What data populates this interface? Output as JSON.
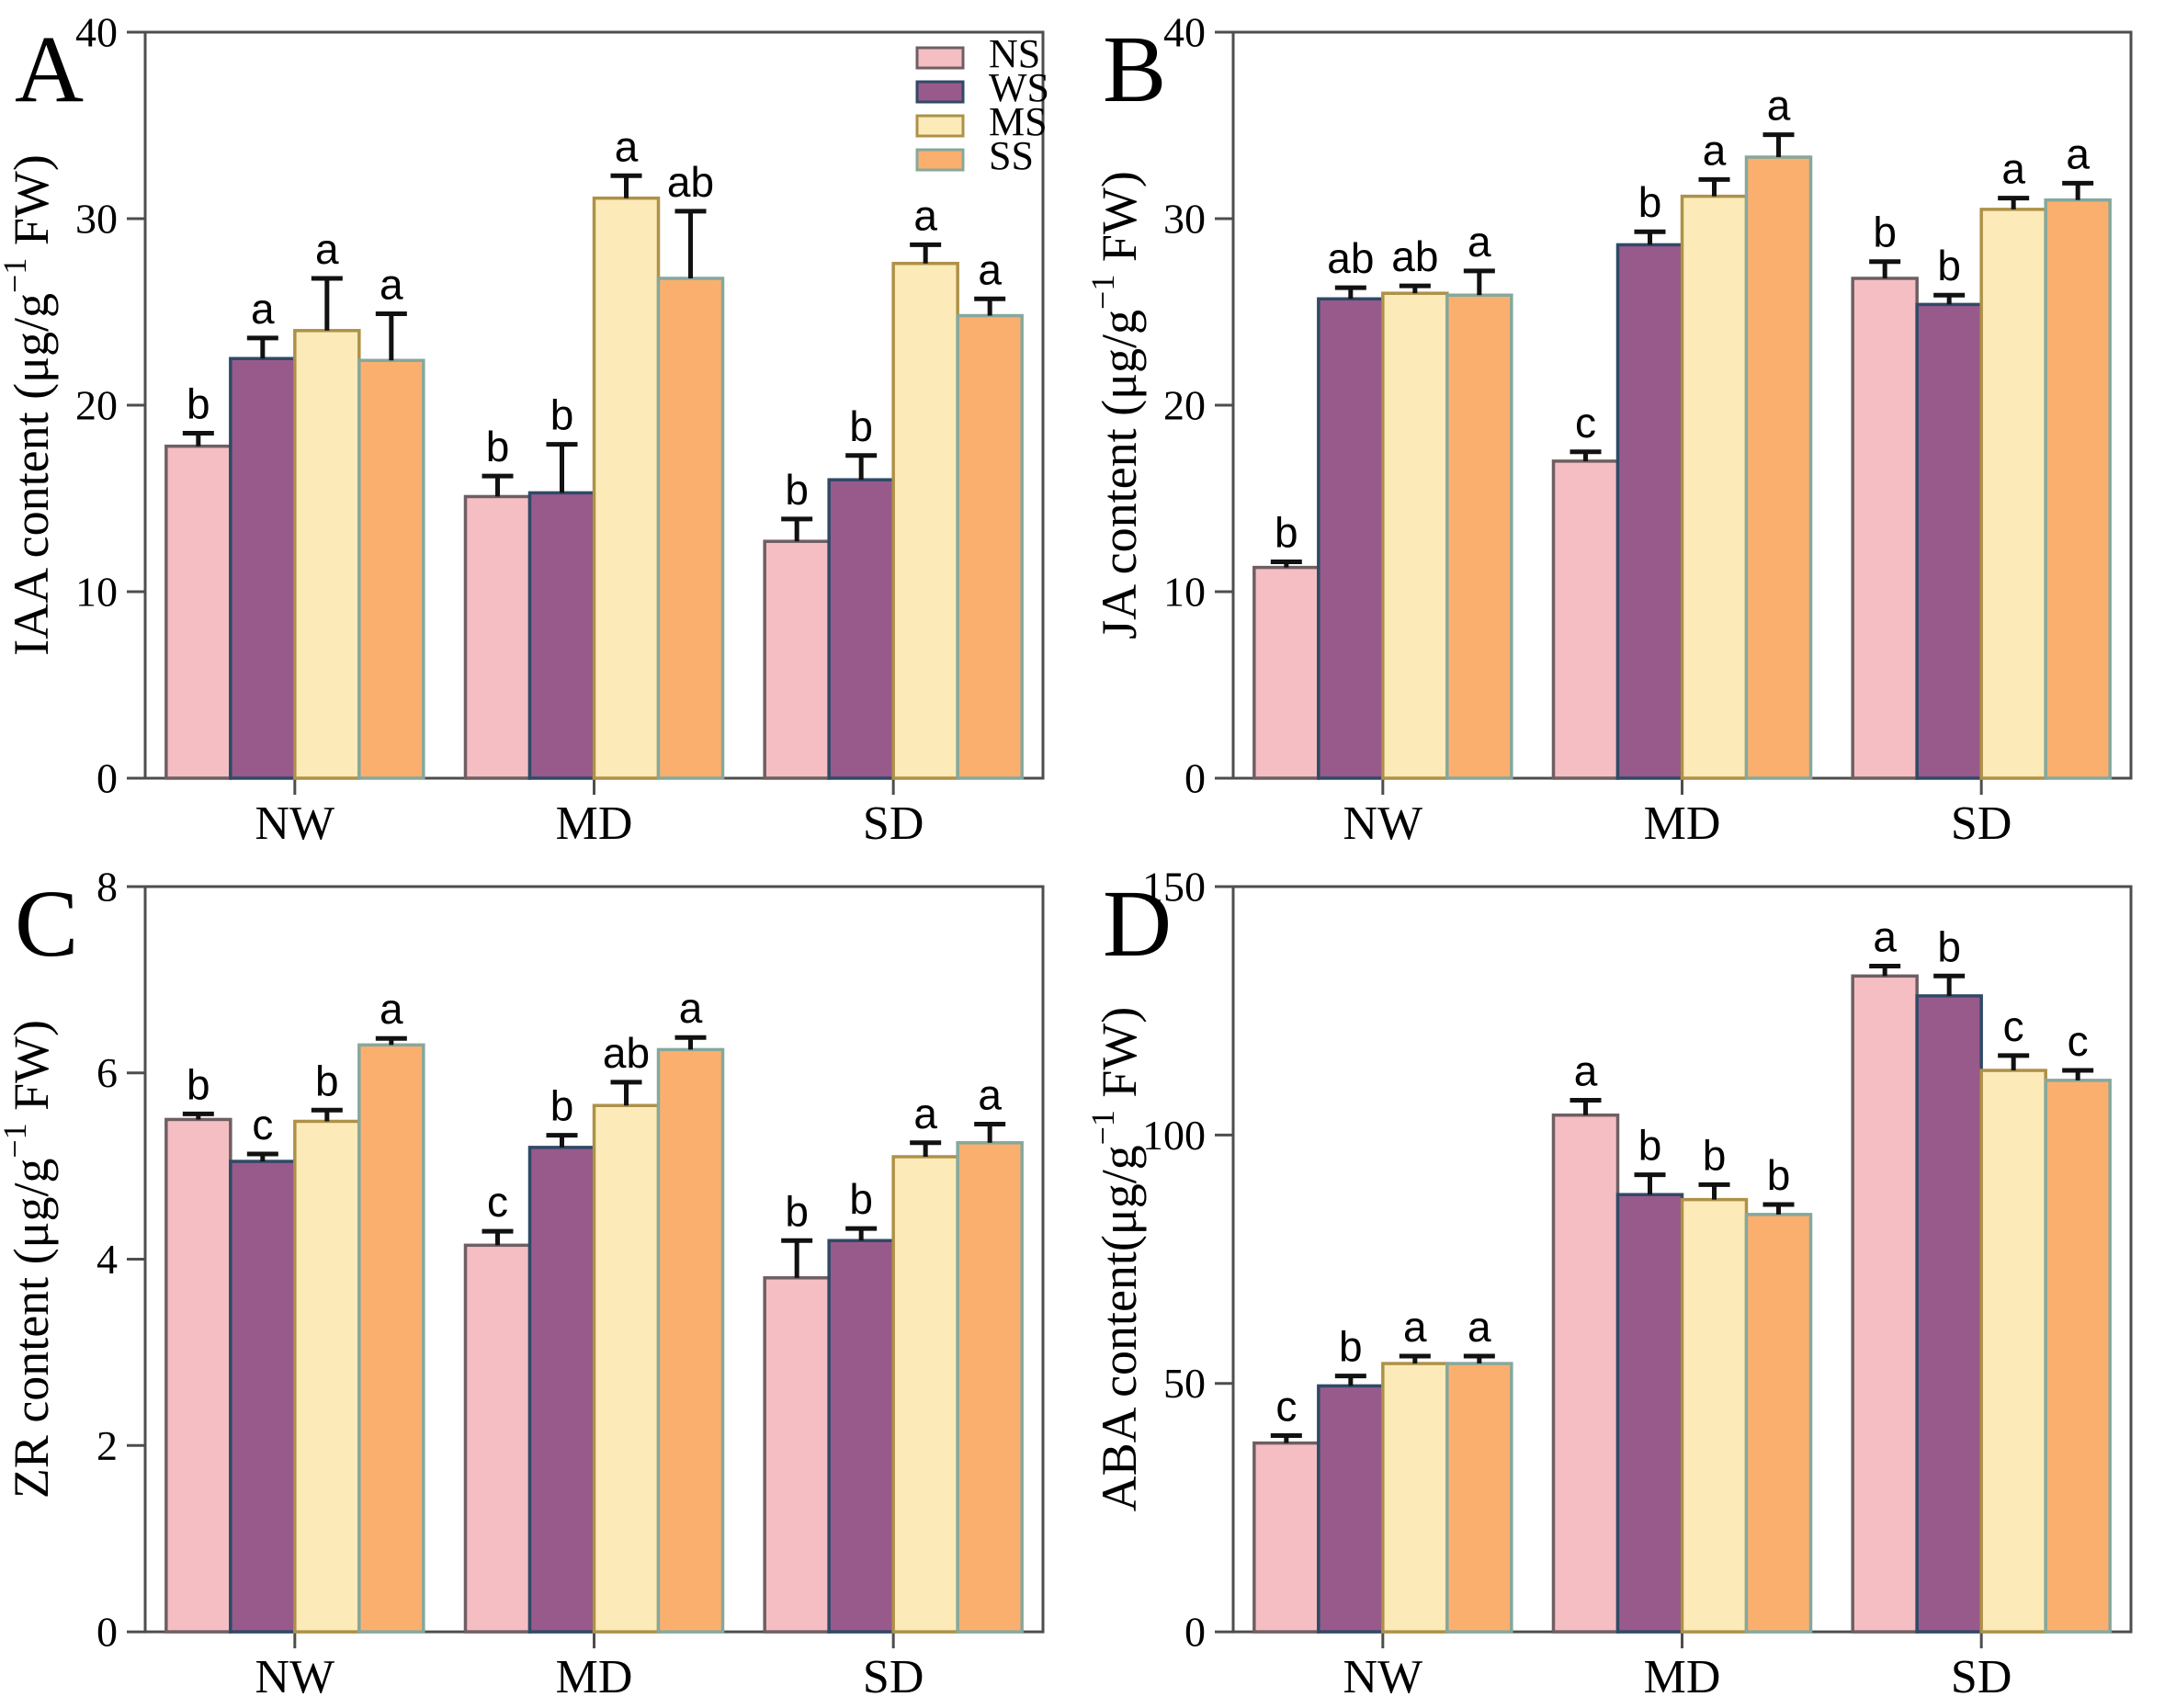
{
  "figure": {
    "background": "#ffffff",
    "axis_color": "#4d4d4d",
    "error_bar_color": "#111111",
    "text_color": "#000000"
  },
  "legend": {
    "position": "top-right-of-panel-A",
    "items": [
      {
        "label": "NS",
        "fill": "#F5BEC3",
        "edge": "#6E5F63"
      },
      {
        "label": "WS",
        "fill": "#985A8B",
        "edge": "#2F4A66"
      },
      {
        "label": "MS",
        "fill": "#FCEBB9",
        "edge": "#AE9148"
      },
      {
        "label": "SS",
        "fill": "#FBAF6F",
        "edge": "#85A89D"
      }
    ]
  },
  "chart_data": [
    {
      "type": "bar",
      "panel_letter": "A",
      "ylabel_pre": "IAA content (μg/g",
      "ylabel_sup": "−1",
      "ylabel_post": " FW)",
      "ylim": [
        0,
        40
      ],
      "yticks": [
        "0",
        "10",
        "20",
        "30",
        "40"
      ],
      "ytick_values": [
        0,
        10,
        20,
        30,
        40
      ],
      "categories": [
        "NW",
        "MD",
        "SD"
      ],
      "grid": false,
      "show_legend": true,
      "series": [
        {
          "name": "NS",
          "values": [
            17.8,
            15.1,
            12.7
          ],
          "errors": [
            0.7,
            1.1,
            1.2
          ],
          "letters": [
            "b",
            "b",
            "b"
          ]
        },
        {
          "name": "WS",
          "values": [
            22.5,
            15.3,
            16.0
          ],
          "errors": [
            1.1,
            2.6,
            1.3
          ],
          "letters": [
            "a",
            "b",
            "b"
          ]
        },
        {
          "name": "MS",
          "values": [
            24.0,
            31.1,
            27.6
          ],
          "errors": [
            2.8,
            1.2,
            1.0
          ],
          "letters": [
            "a",
            "a",
            "a"
          ]
        },
        {
          "name": "SS",
          "values": [
            22.4,
            26.8,
            24.8
          ],
          "errors": [
            2.5,
            3.6,
            0.9
          ],
          "letters": [
            "a",
            "ab",
            "a"
          ]
        }
      ]
    },
    {
      "type": "bar",
      "panel_letter": "B",
      "ylabel_pre": "JA content (μg/g",
      "ylabel_sup": "−1",
      "ylabel_post": " FW)",
      "ylim": [
        0,
        40
      ],
      "yticks": [
        "0",
        "10",
        "20",
        "30",
        "40"
      ],
      "ytick_values": [
        0,
        10,
        20,
        30,
        40
      ],
      "categories": [
        "NW",
        "MD",
        "SD"
      ],
      "grid": false,
      "show_legend": false,
      "series": [
        {
          "name": "NS",
          "values": [
            11.3,
            17.0,
            26.8
          ],
          "errors": [
            0.3,
            0.5,
            0.9
          ],
          "letters": [
            "b",
            "c",
            "b"
          ]
        },
        {
          "name": "WS",
          "values": [
            25.7,
            28.6,
            25.4
          ],
          "errors": [
            0.6,
            0.7,
            0.5
          ],
          "letters": [
            "ab",
            "b",
            "b"
          ]
        },
        {
          "name": "MS",
          "values": [
            26.0,
            31.2,
            30.5
          ],
          "errors": [
            0.4,
            0.9,
            0.6
          ],
          "letters": [
            "ab",
            "a",
            "a"
          ]
        },
        {
          "name": "SS",
          "values": [
            25.9,
            33.3,
            31.0
          ],
          "errors": [
            1.3,
            1.2,
            0.9
          ],
          "letters": [
            "a",
            "a",
            "a"
          ]
        }
      ]
    },
    {
      "type": "bar",
      "panel_letter": "C",
      "ylabel_pre": "ZR content (μg/g",
      "ylabel_sup": "−1",
      "ylabel_post": " FW)",
      "ylim": [
        0,
        8
      ],
      "yticks": [
        "0",
        "2",
        "4",
        "6",
        "8"
      ],
      "ytick_values": [
        0,
        2,
        4,
        6,
        8
      ],
      "categories": [
        "NW",
        "MD",
        "SD"
      ],
      "grid": false,
      "show_legend": false,
      "series": [
        {
          "name": "NS",
          "values": [
            5.5,
            4.15,
            3.8
          ],
          "errors": [
            0.06,
            0.15,
            0.4
          ],
          "letters": [
            "b",
            "c",
            "b"
          ]
        },
        {
          "name": "WS",
          "values": [
            5.05,
            5.2,
            4.2
          ],
          "errors": [
            0.08,
            0.13,
            0.13
          ],
          "letters": [
            "c",
            "b",
            "b"
          ]
        },
        {
          "name": "MS",
          "values": [
            5.48,
            5.65,
            5.1
          ],
          "errors": [
            0.12,
            0.25,
            0.15
          ],
          "letters": [
            "b",
            "ab",
            "a"
          ]
        },
        {
          "name": "SS",
          "values": [
            6.3,
            6.25,
            5.25
          ],
          "errors": [
            0.07,
            0.13,
            0.2
          ],
          "letters": [
            "a",
            "a",
            "a"
          ]
        }
      ]
    },
    {
      "type": "bar",
      "panel_letter": "D",
      "ylabel_pre": "ABA content(μg/g",
      "ylabel_sup": "−1",
      "ylabel_post": " FW)",
      "ylim": [
        0,
        150
      ],
      "yticks": [
        "0",
        "50",
        "100",
        "150"
      ],
      "ytick_values": [
        0,
        50,
        100,
        150
      ],
      "categories": [
        "NW",
        "MD",
        "SD"
      ],
      "grid": false,
      "show_legend": false,
      "series": [
        {
          "name": "NS",
          "values": [
            38,
            104,
            132
          ],
          "errors": [
            1.5,
            3,
            2
          ],
          "letters": [
            "c",
            "a",
            "a"
          ]
        },
        {
          "name": "WS",
          "values": [
            49.5,
            88,
            128
          ],
          "errors": [
            2,
            4,
            4
          ],
          "letters": [
            "b",
            "b",
            "b"
          ]
        },
        {
          "name": "MS",
          "values": [
            54,
            87,
            113
          ],
          "errors": [
            1.5,
            3,
            3
          ],
          "letters": [
            "a",
            "b",
            "c"
          ]
        },
        {
          "name": "SS",
          "values": [
            54,
            84,
            111
          ],
          "errors": [
            1.5,
            2,
            2
          ],
          "letters": [
            "a",
            "b",
            "c"
          ]
        }
      ]
    }
  ]
}
